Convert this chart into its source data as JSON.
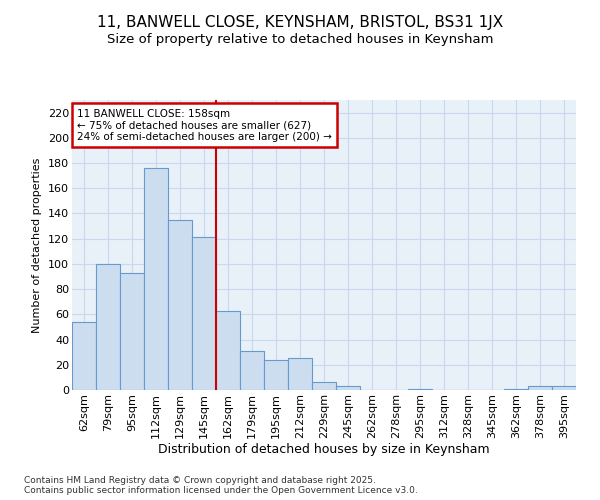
{
  "title1": "11, BANWELL CLOSE, KEYNSHAM, BRISTOL, BS31 1JX",
  "title2": "Size of property relative to detached houses in Keynsham",
  "xlabel": "Distribution of detached houses by size in Keynsham",
  "ylabel": "Number of detached properties",
  "categories": [
    "62sqm",
    "79sqm",
    "95sqm",
    "112sqm",
    "129sqm",
    "145sqm",
    "162sqm",
    "179sqm",
    "195sqm",
    "212sqm",
    "229sqm",
    "245sqm",
    "262sqm",
    "278sqm",
    "295sqm",
    "312sqm",
    "328sqm",
    "345sqm",
    "362sqm",
    "378sqm",
    "395sqm"
  ],
  "values": [
    54,
    100,
    93,
    176,
    135,
    121,
    63,
    31,
    24,
    25,
    6,
    3,
    0,
    0,
    1,
    0,
    0,
    0,
    1,
    3,
    3
  ],
  "bar_color": "#ccddf0",
  "bar_edge_color": "#6699cc",
  "annotation_text": "11 BANWELL CLOSE: 158sqm\n← 75% of detached houses are smaller (627)\n24% of semi-detached houses are larger (200) →",
  "annotation_box_color": "#ffffff",
  "annotation_box_edge": "#cc0000",
  "vline_color": "#cc0000",
  "vline_x_index": 6,
  "grid_color": "#c8d8ee",
  "bg_color": "#e8f0f8",
  "footer": "Contains HM Land Registry data © Crown copyright and database right 2025.\nContains public sector information licensed under the Open Government Licence v3.0.",
  "ylim": [
    0,
    230
  ],
  "yticks": [
    0,
    20,
    40,
    60,
    80,
    100,
    120,
    140,
    160,
    180,
    200,
    220
  ],
  "title1_fontsize": 11,
  "title2_fontsize": 9.5,
  "xlabel_fontsize": 9,
  "ylabel_fontsize": 8,
  "tick_fontsize": 8,
  "footer_fontsize": 6.5
}
